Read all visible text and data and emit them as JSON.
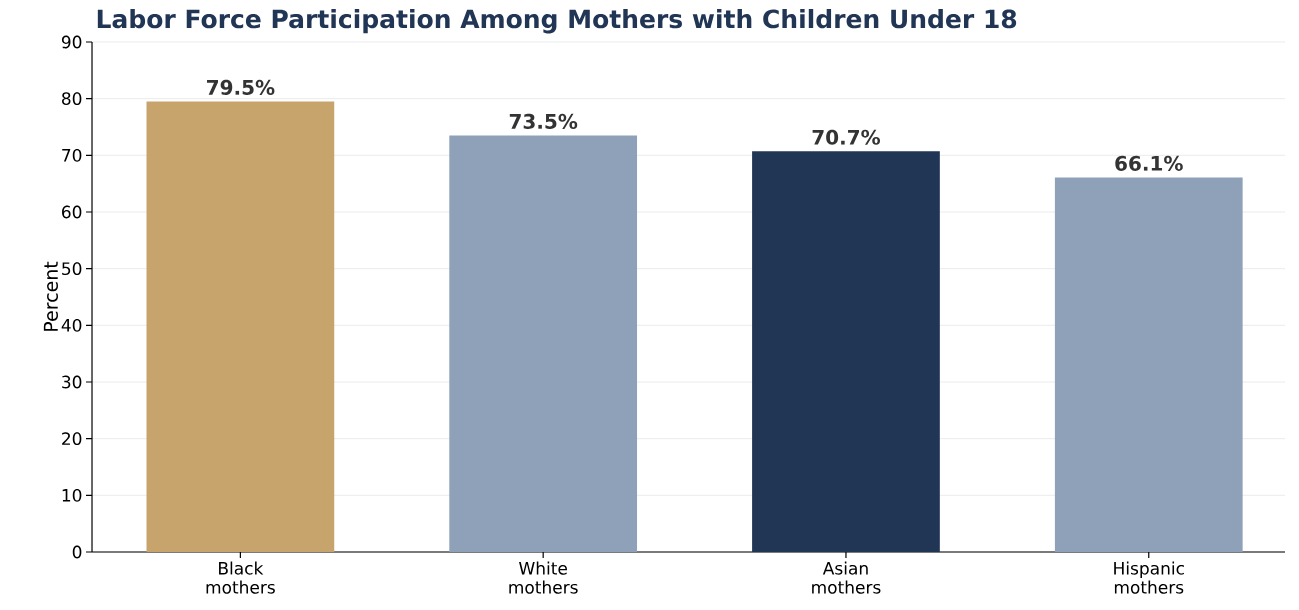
{
  "chart_data": {
    "type": "bar",
    "title": "Labor Force Participation Among Mothers with Children Under 18",
    "ylabel": "Percent",
    "categories": [
      "Black mothers",
      "White mothers",
      "Asian mothers",
      "Hispanic mothers"
    ],
    "values": [
      79.5,
      73.5,
      70.7,
      66.1
    ],
    "colors": [
      "#c6a46b",
      "#8ea1b9",
      "#213555",
      "#8ea1b9"
    ],
    "value_labels": [
      "79.5%",
      "73.5%",
      "70.7%",
      "66.1%"
    ],
    "ylim": [
      0,
      90
    ],
    "yticks": [
      0,
      10,
      20,
      30,
      40,
      50,
      60,
      70,
      80,
      90
    ],
    "grid": "y"
  }
}
